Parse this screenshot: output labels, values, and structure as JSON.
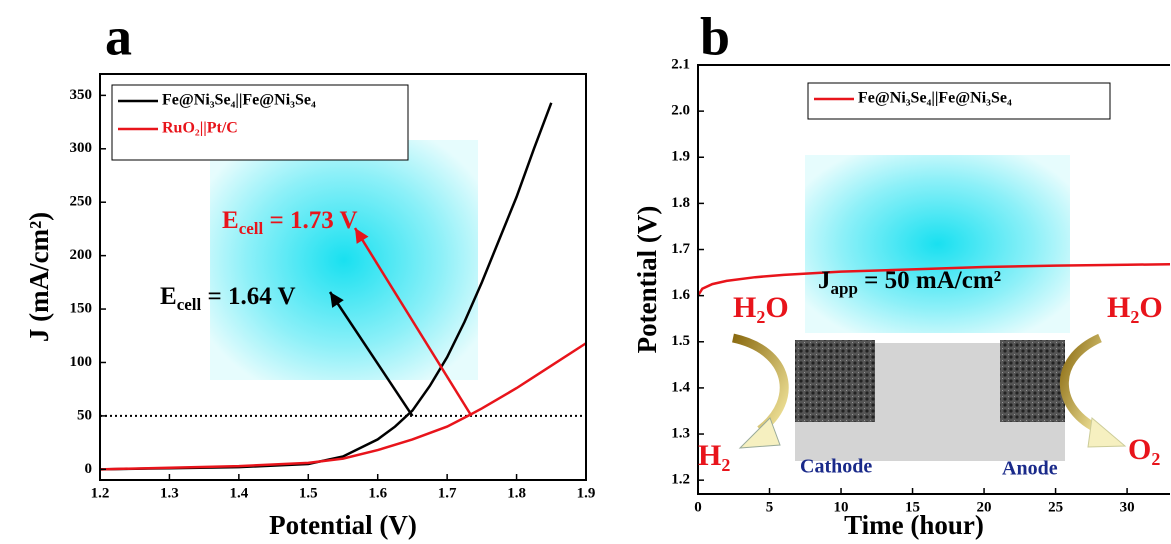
{
  "chart_data": [
    {
      "type": "line",
      "panel": "a",
      "xlabel": "Potential (V)",
      "ylabel": "J (mA/cm²)",
      "xlim": [
        1.2,
        1.9
      ],
      "ylim": [
        -10,
        370
      ],
      "xticks": [
        1.2,
        1.3,
        1.4,
        1.5,
        1.6,
        1.7,
        1.8,
        1.9
      ],
      "yticks": [
        0,
        50,
        100,
        150,
        200,
        250,
        300,
        350
      ],
      "hline": 50,
      "series": [
        {
          "name": "Fe@Ni₃Se₄||Fe@Ni₃Se₄",
          "color": "#000000",
          "x": [
            1.2,
            1.3,
            1.4,
            1.5,
            1.55,
            1.6,
            1.625,
            1.65,
            1.675,
            1.7,
            1.725,
            1.75,
            1.775,
            1.8,
            1.825,
            1.85
          ],
          "values": [
            0,
            1,
            2,
            5,
            12,
            28,
            40,
            55,
            78,
            105,
            138,
            175,
            215,
            255,
            300,
            343
          ]
        },
        {
          "name": "RuO₂||Pt/C",
          "color": "#e8141b",
          "x": [
            1.2,
            1.4,
            1.5,
            1.55,
            1.6,
            1.65,
            1.7,
            1.73,
            1.75,
            1.8,
            1.85,
            1.9
          ],
          "values": [
            0,
            3,
            6,
            10,
            18,
            28,
            40,
            50,
            57,
            76,
            97,
            118
          ]
        }
      ],
      "annotations": [
        {
          "main": "E",
          "sub": "cell",
          "tail": " = 1.64 V",
          "color": "#000000",
          "xy": [
            1.65,
            50
          ]
        },
        {
          "main": "E",
          "sub": "cell",
          "tail": " = 1.73 V",
          "color": "#e8141b",
          "xy": [
            1.735,
            50
          ]
        }
      ]
    },
    {
      "type": "line",
      "panel": "b",
      "xlabel": "Time (hour)",
      "ylabel": "Potential (V)",
      "xlim": [
        0,
        33
      ],
      "ylim": [
        1.17,
        2.1
      ],
      "xticks": [
        0,
        5,
        10,
        15,
        20,
        25,
        30
      ],
      "yticks": [
        1.2,
        1.3,
        1.4,
        1.5,
        1.6,
        1.7,
        1.8,
        1.9,
        {
          "value": 2,
          "label": "2.0"
        },
        2.1
      ],
      "series": [
        {
          "name": "Fe@Ni₃Se₄||Fe@Ni₃Se₄",
          "color": "#e8141b",
          "x": [
            0,
            0.3,
            1,
            2,
            4,
            6,
            10,
            15,
            20,
            25,
            30,
            33
          ],
          "values": [
            1.6,
            1.615,
            1.625,
            1.632,
            1.64,
            1.645,
            1.652,
            1.657,
            1.662,
            1.665,
            1.667,
            1.668
          ]
        }
      ],
      "annotations": [
        {
          "main": "J",
          "sub": "app",
          "tail": " = 50 mA/cm²",
          "color": "#000000"
        }
      ],
      "image_labels": [
        {
          "text": "H₂O",
          "color": "#e8141b"
        },
        {
          "text": "H₂",
          "color": "#e8141b"
        },
        {
          "text": "Cathode",
          "color": "#1a2a8a"
        },
        {
          "text": "Anode",
          "color": "#1a2a8a"
        },
        {
          "text": "H₂O",
          "color": "#e8141b"
        },
        {
          "text": "O₂",
          "color": "#e8141b"
        }
      ]
    }
  ]
}
